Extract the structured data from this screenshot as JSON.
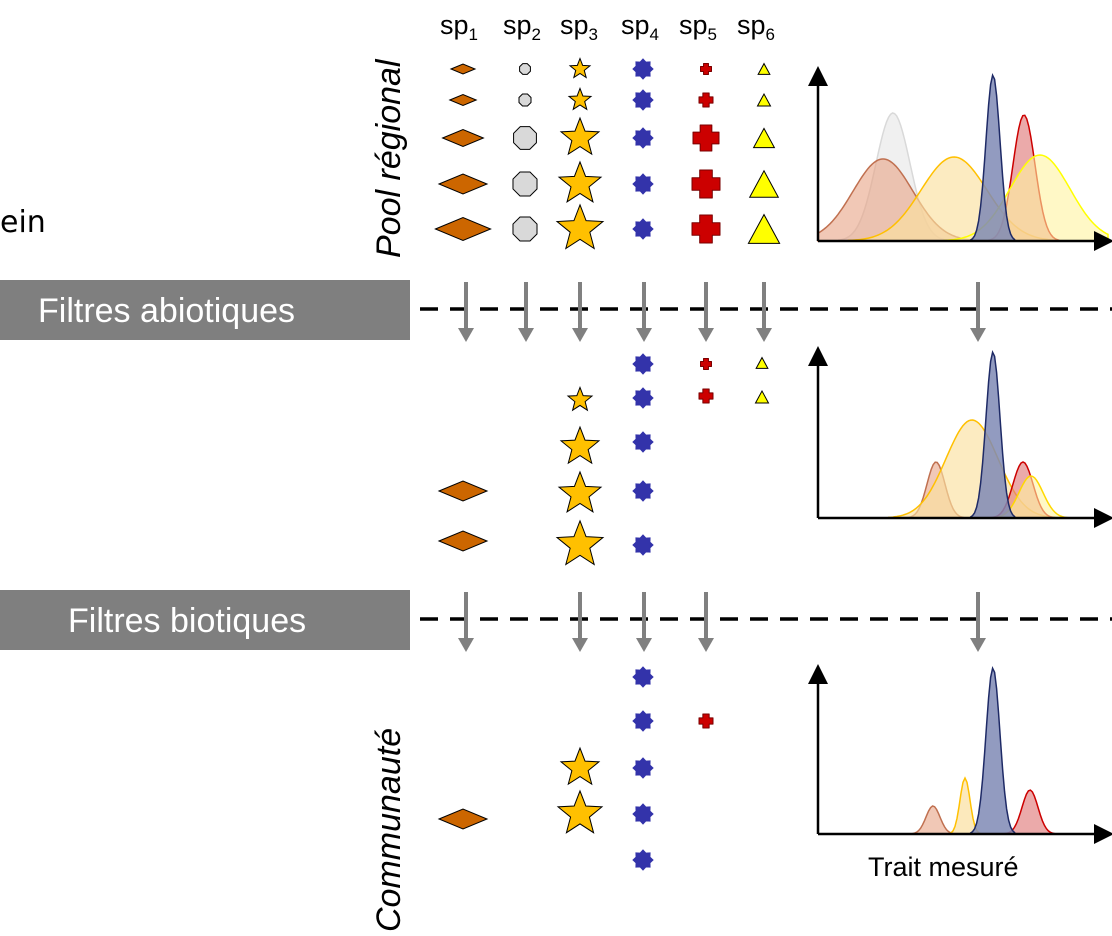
{
  "fragment_text": "ein",
  "species": [
    {
      "base": "sp",
      "sub": "1"
    },
    {
      "base": "sp",
      "sub": "2"
    },
    {
      "base": "sp",
      "sub": "3"
    },
    {
      "base": "sp",
      "sub": "4"
    },
    {
      "base": "sp",
      "sub": "5"
    },
    {
      "base": "sp",
      "sub": "6"
    }
  ],
  "levels": {
    "regional_pool": "Pool régional",
    "community": "Communauté"
  },
  "filters": {
    "abiotic": "Filtres abiotiques",
    "biotic": "Filtres biotiques"
  },
  "xaxis_label": "Trait mesuré",
  "colors": {
    "sp1": "#cc6600",
    "sp2": "#d9d9d9",
    "sp3": "#ffc000",
    "sp4": "#3333aa",
    "sp5": "#cc0000",
    "sp6": "#ffff00",
    "filter_band": "#7f7f7f",
    "arrow": "#808080"
  }
}
